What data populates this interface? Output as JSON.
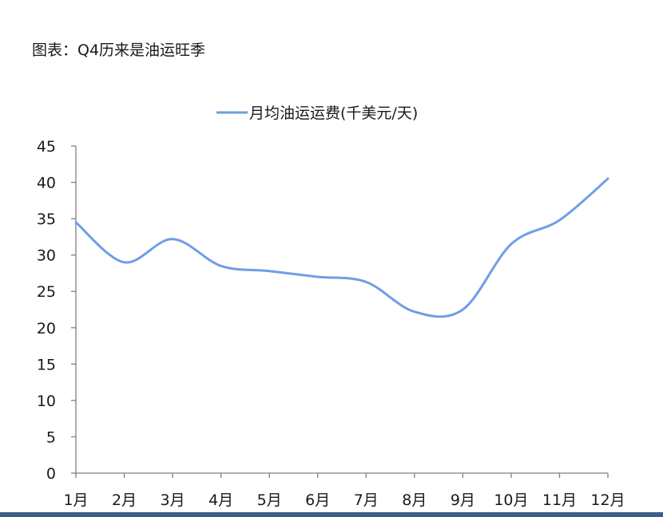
{
  "figure_title": "图表：Q4历来是油运旺季",
  "colors": {
    "line": "#6f9ee6",
    "axis": "#7f7f7f",
    "bottom_bar": "#3b5f86"
  },
  "chart_data": {
    "type": "line",
    "title": "",
    "xlabel": "",
    "ylabel": "",
    "categories": [
      "1月",
      "2月",
      "3月",
      "4月",
      "5月",
      "6月",
      "7月",
      "8月",
      "9月",
      "10月",
      "11月",
      "12月"
    ],
    "series": [
      {
        "name": "月均油运运费(千美元/天)",
        "values": [
          34.5,
          29.0,
          32.2,
          28.5,
          27.8,
          27.0,
          26.3,
          22.2,
          22.5,
          31.5,
          34.8,
          40.5
        ]
      }
    ],
    "ylim": [
      0,
      45
    ],
    "yticks": [
      0,
      5,
      10,
      15,
      20,
      25,
      30,
      35,
      40,
      45
    ],
    "grid": false,
    "legend_position": "top-center"
  }
}
